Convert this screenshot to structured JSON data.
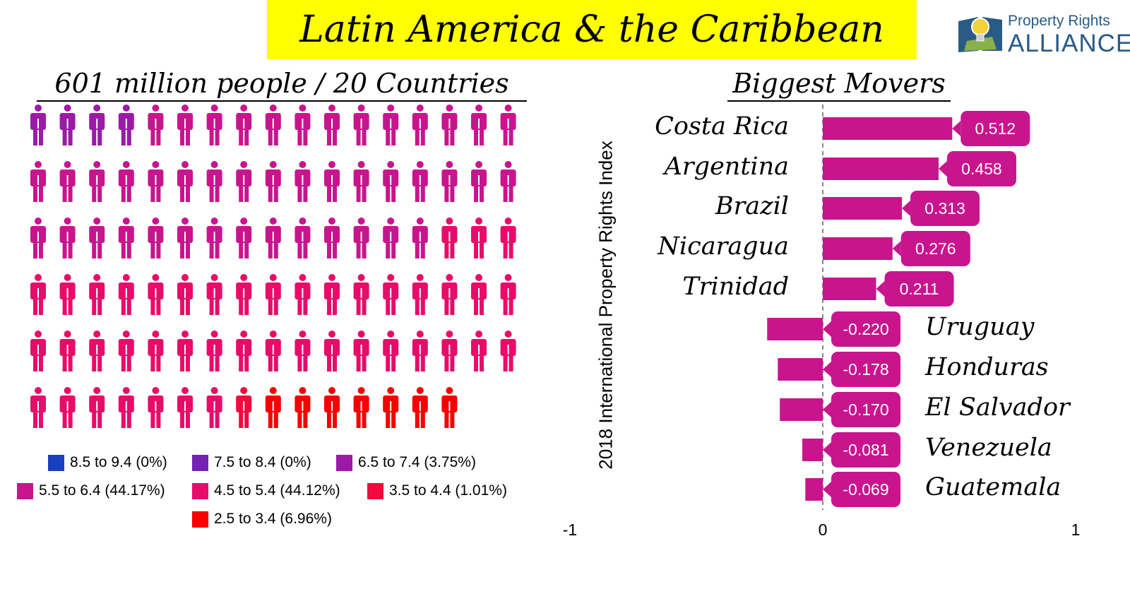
{
  "title": "Latin America & the Caribbean",
  "logo": {
    "line1": "Property Rights",
    "line2": "ALLIANCE"
  },
  "left_panel": {
    "subtitle": "601 million people / 20 Countries",
    "icon_rows": [
      [
        "#9b1aa8",
        "#9b1aa8",
        "#9b1aa8",
        "#9b1aa8",
        "#c8158e",
        "#c8158e",
        "#c8158e",
        "#c8158e",
        "#c8158e",
        "#c8158e",
        "#c8158e",
        "#c8158e",
        "#c8158e",
        "#c8158e",
        "#c8158e",
        "#c8158e",
        "#c8158e"
      ],
      [
        "#c8158e",
        "#c8158e",
        "#c8158e",
        "#c8158e",
        "#c8158e",
        "#c8158e",
        "#c8158e",
        "#c8158e",
        "#c8158e",
        "#c8158e",
        "#c8158e",
        "#c8158e",
        "#c8158e",
        "#c8158e",
        "#c8158e",
        "#c8158e",
        "#c8158e"
      ],
      [
        "#c8158e",
        "#c8158e",
        "#c8158e",
        "#c8158e",
        "#c8158e",
        "#c8158e",
        "#c8158e",
        "#c8158e",
        "#c8158e",
        "#c8158e",
        "#c8158e",
        "#c8158e",
        "#c8158e",
        "#c8158e",
        "#e80c6a",
        "#e80c6a",
        "#e80c6a"
      ],
      [
        "#e80c6a",
        "#e80c6a",
        "#e80c6a",
        "#e80c6a",
        "#e80c6a",
        "#e80c6a",
        "#e80c6a",
        "#e80c6a",
        "#e80c6a",
        "#e80c6a",
        "#e80c6a",
        "#e80c6a",
        "#e80c6a",
        "#e80c6a",
        "#e80c6a",
        "#e80c6a",
        "#e80c6a"
      ],
      [
        "#e80c6a",
        "#e80c6a",
        "#e80c6a",
        "#e80c6a",
        "#e80c6a",
        "#e80c6a",
        "#e80c6a",
        "#e80c6a",
        "#e80c6a",
        "#e80c6a",
        "#e80c6a",
        "#e80c6a",
        "#e80c6a",
        "#e80c6a",
        "#e80c6a",
        "#e80c6a",
        "#e80c6a"
      ],
      [
        "#e80c6a",
        "#e80c6a",
        "#e80c6a",
        "#e80c6a",
        "#e80c6a",
        "#e80c6a",
        "#e80c6a",
        "#f2093e",
        "#f80000",
        "#f80000",
        "#f80000",
        "#f80000",
        "#f80000",
        "#f80000",
        "#f80000"
      ]
    ],
    "legend": [
      {
        "label": "8.5 to 9.4 (0%)",
        "color": "#1a3fbf"
      },
      {
        "label": "7.5 to 8.4 (0%)",
        "color": "#7422b3"
      },
      {
        "label": "6.5 to 7.4 (3.75%)",
        "color": "#9b1aa8"
      },
      {
        "label": "5.5 to 6.4 (44.17%)",
        "color": "#c8158e"
      },
      {
        "label": "4.5 to 5.4 (44.12%)",
        "color": "#e80c6a"
      },
      {
        "label": "3.5 to 4.4 (1.01%)",
        "color": "#f2093e"
      },
      {
        "label": "2.5 to 3.4 (6.96%)",
        "color": "#f80000"
      }
    ]
  },
  "chart_data": {
    "type": "bar",
    "orientation": "horizontal",
    "title": "Biggest Movers",
    "ylabel": "2018 International Property Rights Index",
    "xlim": [
      -1,
      1
    ],
    "x_ticks": [
      "-1",
      "0",
      "1"
    ],
    "bar_color": "#c8158e",
    "categories": [
      "Costa Rica",
      "Argentina",
      "Brazil",
      "Nicaragua",
      "Trinidad",
      "Uruguay",
      "Honduras",
      "El Salvador",
      "Venezuela",
      "Guatemala"
    ],
    "values": [
      0.512,
      0.458,
      0.313,
      0.276,
      0.211,
      -0.22,
      -0.178,
      -0.17,
      -0.081,
      -0.069
    ],
    "value_labels": [
      "0.512",
      "0.458",
      "0.313",
      "0.276",
      "0.211",
      "-0.220",
      "-0.178",
      "-0.170",
      "-0.081",
      "-0.069"
    ]
  }
}
